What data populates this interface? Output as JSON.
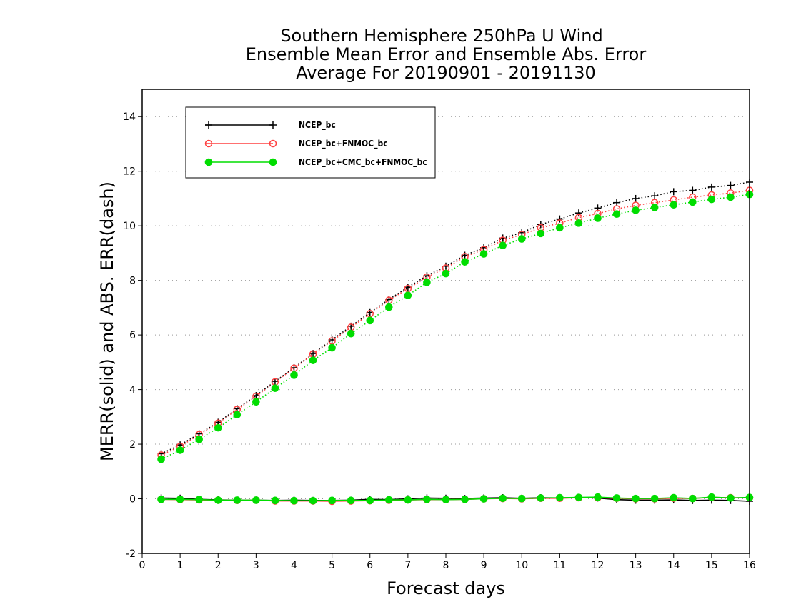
{
  "chart_data": {
    "type": "line",
    "title": [
      "Southern Hemisphere 250hPa U Wind",
      "Ensemble Mean Error and Ensemble Abs. Error",
      "Average For 20190901 - 20191130"
    ],
    "xlabel": "Forecast days",
    "ylabel": "MERR(solid) and ABS. ERR(dash)",
    "xlim": [
      0,
      16
    ],
    "ylim": [
      -2,
      15
    ],
    "xticks": [
      0,
      1,
      2,
      3,
      4,
      5,
      6,
      7,
      8,
      9,
      10,
      11,
      12,
      13,
      14,
      15,
      16
    ],
    "yticks": [
      -2,
      0,
      2,
      4,
      6,
      8,
      10,
      12,
      14
    ],
    "grid": "horizontal dotted",
    "legend_position": "top-left",
    "x": [
      0.5,
      1.0,
      1.5,
      2.0,
      2.5,
      3.0,
      3.5,
      4.0,
      4.5,
      5.0,
      5.5,
      6.0,
      6.5,
      7.0,
      7.5,
      8.0,
      8.5,
      9.0,
      9.5,
      10.0,
      10.5,
      11.0,
      11.5,
      12.0,
      12.5,
      13.0,
      13.5,
      14.0,
      14.5,
      15.0,
      15.5,
      16.0
    ],
    "series": [
      {
        "name": "NCEP_bc",
        "color": "#000000",
        "marker": "plus",
        "abs_err": [
          1.65,
          1.97,
          2.38,
          2.8,
          3.3,
          3.78,
          4.3,
          4.8,
          5.32,
          5.82,
          6.32,
          6.82,
          7.3,
          7.75,
          8.17,
          8.52,
          8.92,
          9.2,
          9.55,
          9.75,
          10.05,
          10.25,
          10.47,
          10.65,
          10.85,
          11.0,
          11.1,
          11.25,
          11.3,
          11.42,
          11.48,
          11.6
        ],
        "mean_err": [
          0.03,
          0.02,
          -0.02,
          -0.04,
          -0.05,
          -0.05,
          -0.06,
          -0.05,
          -0.06,
          -0.06,
          -0.05,
          -0.02,
          -0.03,
          0.0,
          0.03,
          0.02,
          0.01,
          0.03,
          0.04,
          0.02,
          0.04,
          0.03,
          0.05,
          0.03,
          -0.03,
          -0.05,
          -0.05,
          -0.04,
          -0.06,
          -0.05,
          -0.06,
          -0.09
        ]
      },
      {
        "name": "NCEP_bc+FNMOC_bc",
        "color": "#ff4040",
        "marker": "open-circle",
        "abs_err": [
          1.6,
          1.92,
          2.35,
          2.77,
          3.27,
          3.75,
          4.28,
          4.78,
          5.3,
          5.78,
          6.28,
          6.78,
          7.27,
          7.7,
          8.12,
          8.45,
          8.87,
          9.13,
          9.47,
          9.68,
          9.93,
          10.1,
          10.3,
          10.45,
          10.62,
          10.75,
          10.85,
          10.95,
          11.05,
          11.13,
          11.2,
          11.3
        ],
        "mean_err": [
          -0.02,
          -0.03,
          -0.04,
          -0.05,
          -0.06,
          -0.05,
          -0.08,
          -0.08,
          -0.08,
          -0.09,
          -0.08,
          -0.07,
          -0.05,
          -0.04,
          -0.03,
          -0.03,
          -0.02,
          0.0,
          0.01,
          0.0,
          0.02,
          0.02,
          0.04,
          0.04,
          0.02,
          0.0,
          0.0,
          0.02,
          0.01,
          0.05,
          0.04,
          0.04
        ]
      },
      {
        "name": "NCEP_bc+CMC_bc+FNMOC_bc",
        "color": "#00dd00",
        "marker": "filled-circle",
        "abs_err": [
          1.45,
          1.78,
          2.18,
          2.6,
          3.08,
          3.55,
          4.05,
          4.53,
          5.07,
          5.53,
          6.05,
          6.53,
          7.02,
          7.45,
          7.93,
          8.25,
          8.68,
          8.97,
          9.28,
          9.52,
          9.72,
          9.93,
          10.1,
          10.28,
          10.43,
          10.57,
          10.67,
          10.77,
          10.87,
          10.97,
          11.05,
          11.15
        ],
        "mean_err": [
          -0.02,
          -0.02,
          -0.03,
          -0.05,
          -0.05,
          -0.05,
          -0.06,
          -0.07,
          -0.07,
          -0.06,
          -0.06,
          -0.06,
          -0.04,
          -0.04,
          -0.02,
          -0.03,
          -0.02,
          0.0,
          0.02,
          0.01,
          0.03,
          0.04,
          0.05,
          0.06,
          0.03,
          0.01,
          0.01,
          0.04,
          0.01,
          0.06,
          0.03,
          0.05
        ]
      }
    ]
  }
}
